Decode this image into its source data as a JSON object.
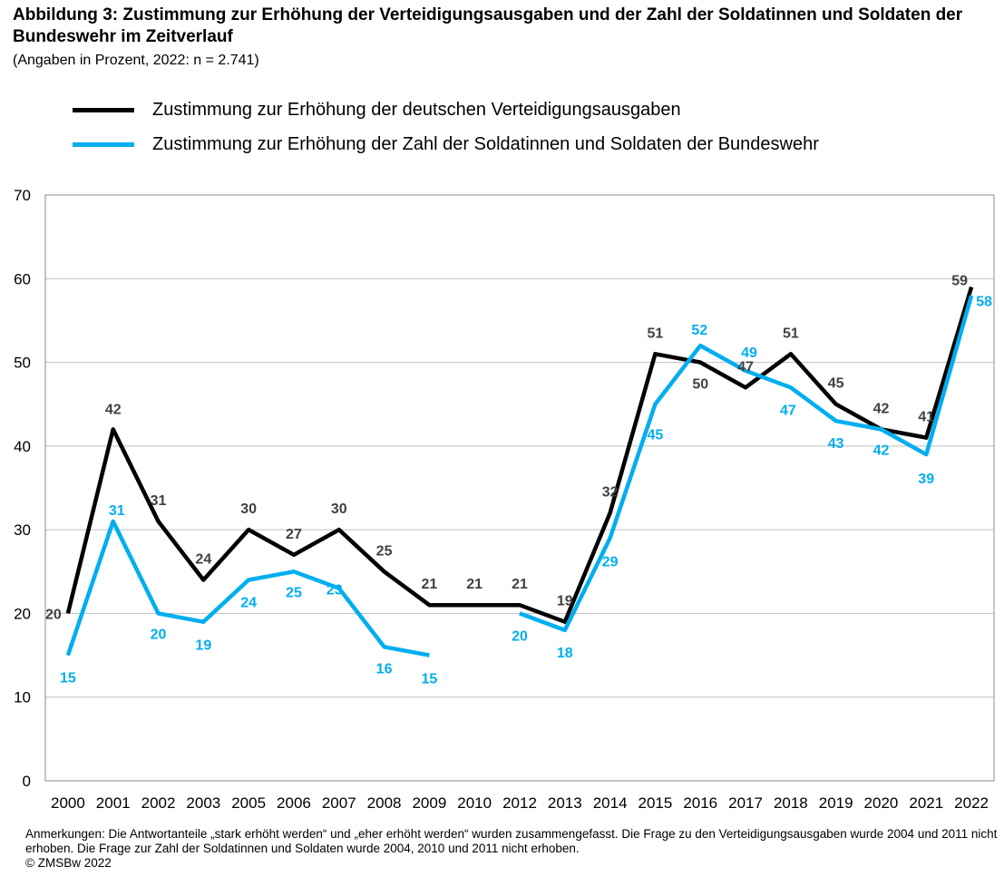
{
  "title": "Abbildung 3: Zustimmung zur Erhöhung der Verteidigungsausgaben und der Zahl der Soldatinnen und Soldaten der Bundeswehr im Zeitverlauf",
  "subtitle": "(Angaben in Prozent, 2022: n = 2.741)",
  "notes": {
    "line1": "Anmerkungen: Die Antwortanteile „stark erhöht werden“ und „eher erhöht werden“ wurden zusammengefasst. Die Frage zu den Verteidigungsausgaben wurde 2004 und 2011 nicht erhoben. Die Frage zur Zahl der Soldatinnen und Soldaten wurde 2004, 2010 und 2011 nicht erhoben.",
    "copyright": "© ZMSBw 2022"
  },
  "chart_data": {
    "type": "line",
    "categories": [
      "2000",
      "2001",
      "2002",
      "2003",
      "2005",
      "2006",
      "2007",
      "2008",
      "2009",
      "2010",
      "2012",
      "2013",
      "2014",
      "2015",
      "2016",
      "2017",
      "2018",
      "2019",
      "2020",
      "2021",
      "2022"
    ],
    "ylim": [
      0,
      70
    ],
    "yticks": [
      0,
      10,
      20,
      30,
      40,
      50,
      60,
      70
    ],
    "grid": true,
    "legend_position": "top-left",
    "series": [
      {
        "name": "Zustimmung zur Erhöhung der deutschen Verteidigungsausgaben",
        "color": "#000000",
        "label_color": "#404040",
        "values": [
          20,
          42,
          31,
          24,
          30,
          27,
          30,
          25,
          21,
          21,
          21,
          19,
          32,
          51,
          50,
          47,
          51,
          45,
          42,
          41,
          59
        ]
      },
      {
        "name": "Zustimmung zur Erhöhung der Zahl der Soldatinnen und Soldaten der Bundeswehr",
        "color": "#00AEEF",
        "label_color": "#00AEEF",
        "values": [
          15,
          31,
          20,
          19,
          24,
          25,
          23,
          16,
          15,
          null,
          20,
          18,
          29,
          45,
          52,
          49,
          47,
          43,
          42,
          39,
          58
        ]
      }
    ]
  }
}
